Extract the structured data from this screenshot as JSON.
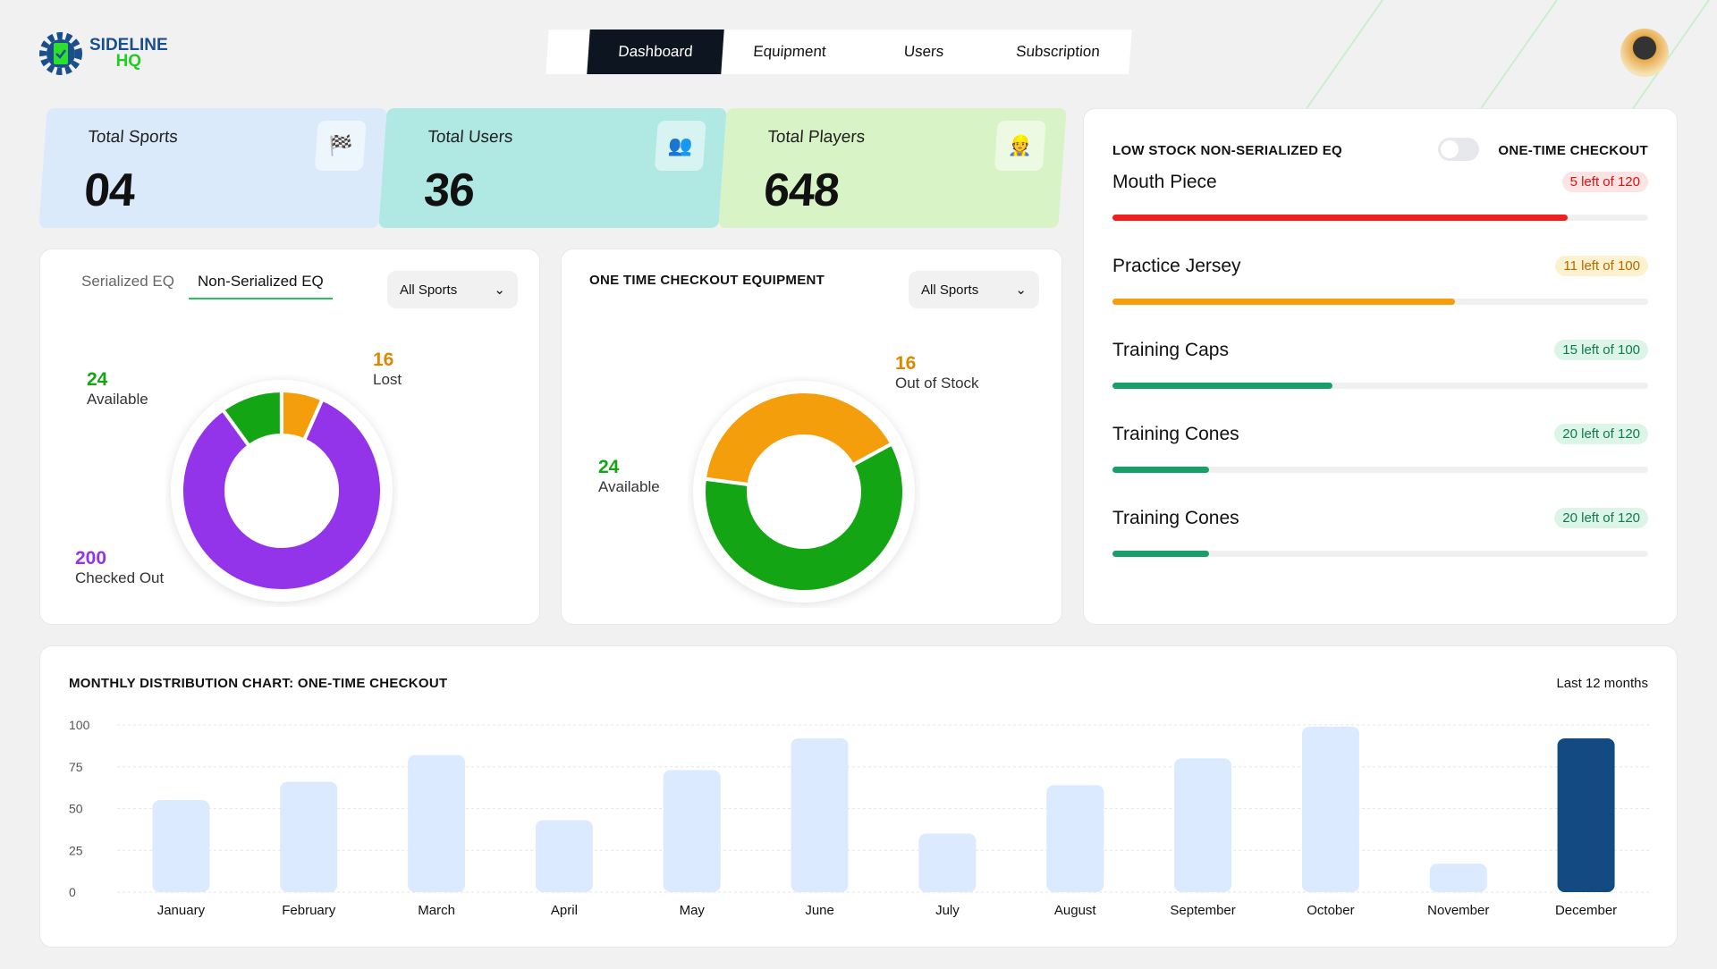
{
  "brand": {
    "line1": "SIDELINE",
    "line2": "HQ"
  },
  "nav": {
    "tabs": [
      "Dashboard",
      "Equipment",
      "Users",
      "Subscription"
    ],
    "active": "Dashboard"
  },
  "stats": [
    {
      "label": "Total Sports",
      "value": "04",
      "icon": "checkered-flags-icon",
      "color": "#dbeafb"
    },
    {
      "label": "Total Users",
      "value": "36",
      "icon": "users-group-icon",
      "color": "#b0e8e4"
    },
    {
      "label": "Total Players",
      "value": "648",
      "icon": "player-icon",
      "color": "#d8f4c6"
    }
  ],
  "inventory": {
    "tabs": [
      "Serialized EQ",
      "Non-Serialized EQ"
    ],
    "active_tab": "Non-Serialized EQ",
    "filter": "All Sports",
    "segments": [
      {
        "label": "Available",
        "value": 24,
        "color": "#14a514"
      },
      {
        "label": "Lost",
        "value": 16,
        "color": "#f59e0b"
      },
      {
        "label": "Checked Out",
        "value": 200,
        "color": "#9333ea"
      }
    ]
  },
  "checkout": {
    "title": "ONE TIME CHECKOUT EQUIPMENT",
    "filter": "All Sports",
    "segments": [
      {
        "label": "Available",
        "value": 24,
        "color": "#14a514"
      },
      {
        "label": "Out of Stock",
        "value": 16,
        "color": "#f59e0b"
      }
    ]
  },
  "low_stock": {
    "title": "LOW STOCK NON-SERIALIZED EQ",
    "toggle_label": "ONE-TIME CHECKOUT",
    "toggle_on": false,
    "items": [
      {
        "name": "Mouth Piece",
        "badge": "5 left of 120",
        "fill_pct": 85,
        "color": "#ef2020",
        "badge_bg": "#fde4e4",
        "badge_fg": "#d11"
      },
      {
        "name": "Practice Jersey",
        "badge": "11 left of 100",
        "fill_pct": 64,
        "color": "#f59e0b",
        "badge_bg": "#fdf1d0",
        "badge_fg": "#b26b00"
      },
      {
        "name": "Training Caps",
        "badge": "15 left of 100",
        "fill_pct": 41,
        "color": "#1a9e6a",
        "badge_bg": "#dcf5e8",
        "badge_fg": "#127a4f"
      },
      {
        "name": "Training Cones",
        "badge": "20 left of 120",
        "fill_pct": 18,
        "color": "#1a9e6a",
        "badge_bg": "#dcf5e8",
        "badge_fg": "#127a4f"
      },
      {
        "name": "Training Cones",
        "badge": "20 left of 120",
        "fill_pct": 18,
        "color": "#1a9e6a",
        "badge_bg": "#dcf5e8",
        "badge_fg": "#127a4f"
      }
    ]
  },
  "chart_data": {
    "type": "bar",
    "title": "MONTHLY DISTRIBUTION CHART: ONE-TIME CHECKOUT",
    "range_label": "Last 12 months",
    "categories": [
      "January",
      "February",
      "March",
      "April",
      "May",
      "June",
      "July",
      "August",
      "September",
      "October",
      "November",
      "December"
    ],
    "values": [
      55,
      66,
      82,
      43,
      73,
      92,
      35,
      64,
      80,
      99,
      17,
      92
    ],
    "yticks": [
      0,
      25,
      50,
      75,
      100
    ],
    "ylim": [
      0,
      100
    ],
    "grid": true,
    "bar_color": "#dbeafe",
    "highlight_color": "#134a82",
    "highlight": "December"
  }
}
